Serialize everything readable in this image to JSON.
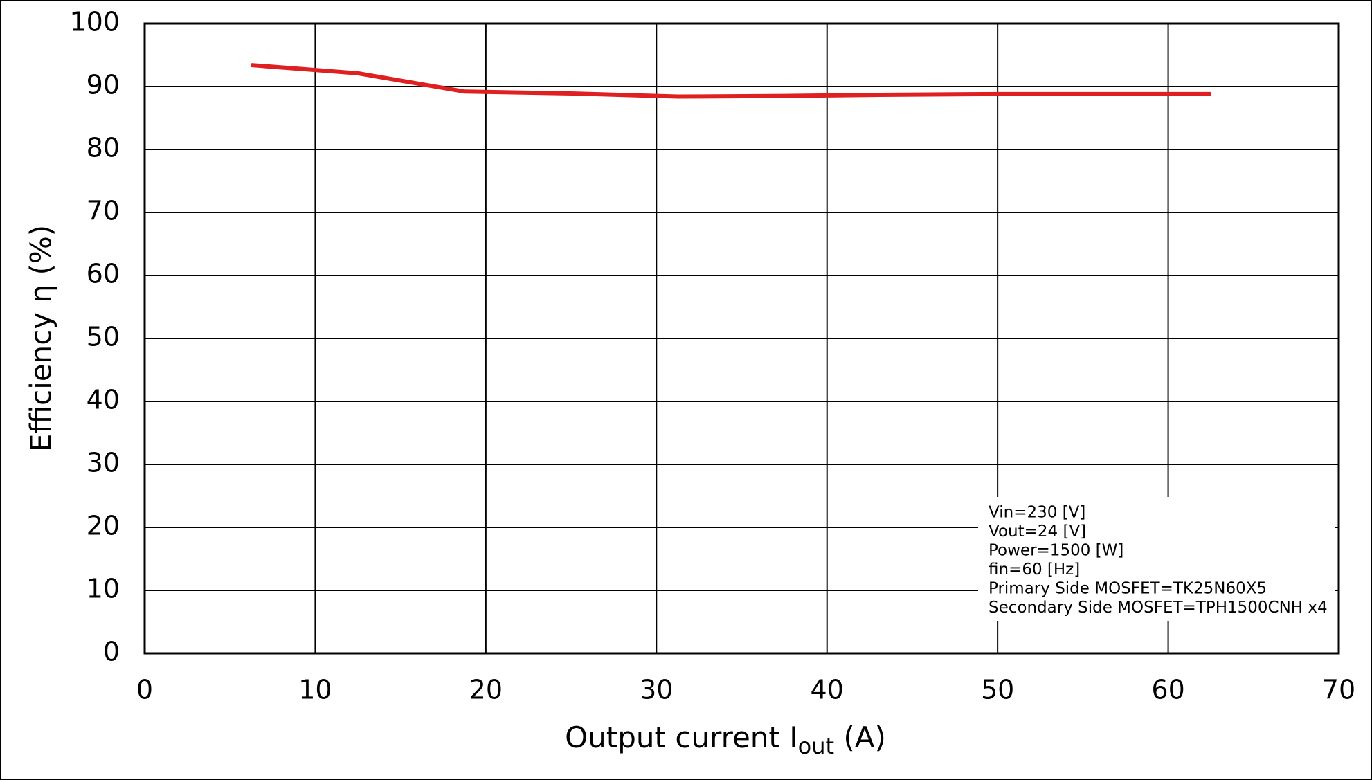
{
  "chart_data": {
    "type": "line",
    "x_label": {
      "text": "Output current  I",
      "subscript": "out",
      "suffix": " (A)"
    },
    "y_label": "Efficiency  η (%)",
    "x": [
      6.25,
      12.5,
      18.75,
      25,
      31.25,
      37.5,
      43.75,
      50,
      56.25,
      62.5
    ],
    "series": [
      {
        "color": "#e02020",
        "values": [
          93.4,
          92.1,
          89.2,
          88.9,
          88.4,
          88.5,
          88.7,
          88.8,
          88.8,
          88.8
        ]
      }
    ],
    "xlim": [
      0,
      70
    ],
    "xticks": [
      0,
      10,
      20,
      30,
      40,
      50,
      60,
      70
    ],
    "ylim": [
      0,
      100
    ],
    "yticks": [
      0,
      10,
      20,
      30,
      40,
      50,
      60,
      70,
      80,
      90,
      100
    ],
    "grid": true,
    "annotation": [
      "Vin=230 [V]",
      "Vout=24 [V]",
      "Power=1500 [W]",
      "fin=60 [Hz]",
      "Primary Side MOSFET=TK25N60X5",
      "Secondary Side MOSFET=TPH1500CNH x4"
    ]
  }
}
